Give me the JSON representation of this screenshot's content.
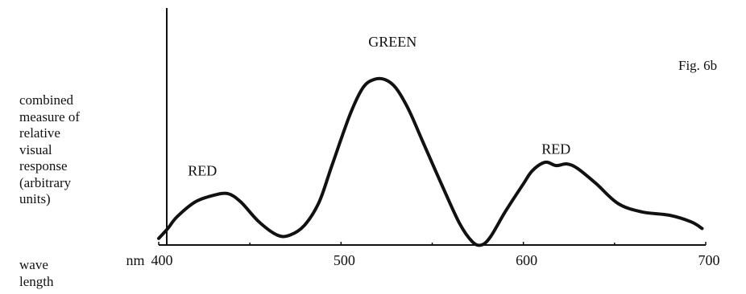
{
  "figure_label": "Fig. 6b",
  "ylabel_lines": [
    "combined",
    "measure of",
    "relative",
    "visual",
    "response",
    "(arbitrary",
    "units)"
  ],
  "xlabel_lines": [
    "wave",
    "length"
  ],
  "x_unit": "nm",
  "chart_data": {
    "type": "line",
    "title": "",
    "xlabel": "wave length",
    "ylabel": "combined measure of relative visual response (arbitrary units)",
    "x_unit": "nm",
    "xlim": [
      400,
      700
    ],
    "ylim": [
      0,
      1
    ],
    "x_ticks": [
      400,
      500,
      600,
      700
    ],
    "grid": false,
    "annotations": [
      {
        "text": "RED",
        "x": 416,
        "y": 0.42
      },
      {
        "text": "GREEN",
        "x": 515,
        "y": 1.2
      },
      {
        "text": "RED",
        "x": 610,
        "y": 0.55
      }
    ],
    "series": [
      {
        "color": "#111111",
        "x": [
          400,
          405,
          410,
          420,
          430,
          438,
          445,
          455,
          465,
          472,
          480,
          488,
          495,
          505,
          512,
          518,
          524,
          530,
          537,
          545,
          555,
          565,
          572,
          577,
          582,
          590,
          600,
          605,
          612,
          618,
          624,
          630,
          640,
          652,
          665,
          680,
          692,
          698
        ],
        "y": [
          0.04,
          0.1,
          0.17,
          0.26,
          0.3,
          0.31,
          0.26,
          0.14,
          0.06,
          0.06,
          0.12,
          0.26,
          0.48,
          0.79,
          0.95,
          1.0,
          1.0,
          0.95,
          0.82,
          0.62,
          0.37,
          0.13,
          0.02,
          0.0,
          0.05,
          0.2,
          0.37,
          0.45,
          0.5,
          0.48,
          0.49,
          0.46,
          0.37,
          0.25,
          0.2,
          0.18,
          0.14,
          0.1
        ]
      }
    ]
  }
}
